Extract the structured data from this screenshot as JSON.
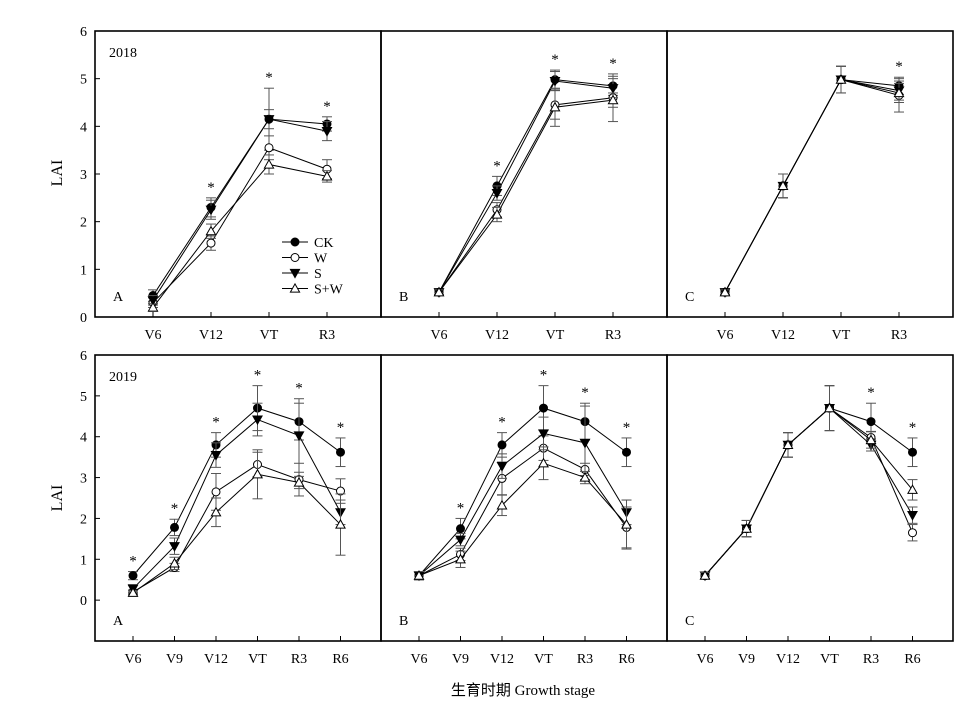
{
  "figure": {
    "xlabel": "生育时期 Growth stage",
    "ylabel": "LAI",
    "legend": [
      "CK",
      "W",
      "S",
      "S+W"
    ],
    "legend_placement": "inside panel A (2018), lower-middle",
    "colors": {
      "line": "#000000",
      "error_bar": "#555555",
      "marker": "#000000"
    },
    "marker_symbols": {
      "CK": "filled-circle",
      "W": "open-circle",
      "S": "filled-triangle-down",
      "S+W": "open-triangle-up"
    }
  },
  "chart_data": [
    {
      "type": "line",
      "row": "2018",
      "panel": "A",
      "year_label": "2018",
      "categories": [
        "V6",
        "V12",
        "VT",
        "R3"
      ],
      "ylim": [
        0,
        6
      ],
      "yticks": [
        0,
        1,
        2,
        3,
        4,
        5,
        6
      ],
      "show_yticklabels": true,
      "series": [
        {
          "name": "CK",
          "values": [
            0.45,
            2.3,
            4.15,
            4.05
          ],
          "err": [
            0.12,
            0.2,
            0.65,
            0.15
          ]
        },
        {
          "name": "W",
          "values": [
            0.3,
            1.55,
            3.55,
            3.1
          ],
          "err": [
            0.1,
            0.15,
            0.25,
            0.2
          ]
        },
        {
          "name": "S",
          "values": [
            0.35,
            2.25,
            4.15,
            3.9
          ],
          "err": [
            0.1,
            0.2,
            0.2,
            0.2
          ]
        },
        {
          "name": "S+W",
          "values": [
            0.2,
            1.8,
            3.2,
            2.95
          ],
          "err": [
            0.08,
            0.15,
            0.2,
            0.12
          ]
        }
      ],
      "significance": [
        "V12",
        "VT",
        "R3"
      ]
    },
    {
      "type": "line",
      "row": "2018",
      "panel": "B",
      "categories": [
        "V6",
        "V12",
        "VT",
        "R3"
      ],
      "ylim": [
        0,
        6
      ],
      "yticks": [
        0,
        1,
        2,
        3,
        4,
        5,
        6
      ],
      "show_yticklabels": false,
      "series": [
        {
          "name": "CK",
          "values": [
            0.52,
            2.75,
            4.98,
            4.85
          ],
          "err": [
            0.05,
            0.2,
            0.2,
            0.2
          ]
        },
        {
          "name": "W",
          "values": [
            0.52,
            2.25,
            4.45,
            4.6
          ],
          "err": [
            0.05,
            0.15,
            0.3,
            0.5
          ]
        },
        {
          "name": "S",
          "values": [
            0.52,
            2.6,
            4.95,
            4.8
          ],
          "err": [
            0.05,
            0.15,
            0.2,
            0.2
          ]
        },
        {
          "name": "S+W",
          "values": [
            0.52,
            2.15,
            4.4,
            4.55
          ],
          "err": [
            0.05,
            0.15,
            0.4,
            0.15
          ]
        }
      ],
      "significance": [
        "V12",
        "VT",
        "R3"
      ]
    },
    {
      "type": "line",
      "row": "2018",
      "panel": "C",
      "categories": [
        "V6",
        "V12",
        "VT",
        "R3"
      ],
      "ylim": [
        0,
        6
      ],
      "yticks": [
        0,
        1,
        2,
        3,
        4,
        5,
        6
      ],
      "show_yticklabels": false,
      "series": [
        {
          "name": "CK",
          "values": [
            0.52,
            2.75,
            4.98,
            4.85
          ],
          "err": [
            0.05,
            0.25,
            0.28,
            0.18
          ]
        },
        {
          "name": "W",
          "values": [
            0.52,
            2.75,
            4.98,
            4.65
          ],
          "err": [
            0.05,
            0.25,
            0.28,
            0.35
          ]
        },
        {
          "name": "S",
          "values": [
            0.52,
            2.75,
            4.98,
            4.75
          ],
          "err": [
            0.05,
            0.25,
            0.28,
            0.2
          ]
        },
        {
          "name": "S+W",
          "values": [
            0.52,
            2.75,
            4.98,
            4.7
          ],
          "err": [
            0.05,
            0.25,
            0.28,
            0.2
          ]
        }
      ],
      "significance": [
        "R3"
      ]
    },
    {
      "type": "line",
      "row": "2019",
      "panel": "A",
      "year_label": "2019",
      "categories": [
        "V6",
        "V9",
        "V12",
        "VT",
        "R3",
        "R6"
      ],
      "ylim": [
        -1,
        6
      ],
      "yticks": [
        0,
        1,
        2,
        3,
        4,
        5,
        6
      ],
      "show_yticklabels": true,
      "series": [
        {
          "name": "CK",
          "values": [
            0.6,
            1.78,
            3.8,
            4.7,
            4.37,
            3.62
          ],
          "err": [
            0.1,
            0.2,
            0.3,
            0.55,
            0.45,
            0.35
          ]
        },
        {
          "name": "W",
          "values": [
            0.2,
            0.8,
            2.65,
            3.32,
            2.95,
            2.67
          ],
          "err": [
            0.05,
            0.1,
            0.45,
            0.3,
            0.4,
            0.3
          ]
        },
        {
          "name": "S",
          "values": [
            0.28,
            1.32,
            3.55,
            4.42,
            4.03,
            2.15
          ],
          "err": [
            0.1,
            0.2,
            0.3,
            0.4,
            0.9,
            0.3
          ]
        },
        {
          "name": "S+W",
          "values": [
            0.18,
            0.9,
            2.15,
            3.08,
            2.88,
            1.85
          ],
          "err": [
            0.05,
            0.15,
            0.35,
            0.6,
            0.15,
            0.75
          ]
        }
      ],
      "significance": [
        "V6",
        "V9",
        "V12",
        "VT",
        "R3",
        "R6"
      ]
    },
    {
      "type": "line",
      "row": "2019",
      "panel": "B",
      "categories": [
        "V6",
        "V9",
        "V12",
        "VT",
        "R3",
        "R6"
      ],
      "ylim": [
        -1,
        6
      ],
      "yticks": [
        0,
        1,
        2,
        3,
        4,
        5,
        6
      ],
      "show_yticklabels": false,
      "series": [
        {
          "name": "CK",
          "values": [
            0.6,
            1.75,
            3.8,
            4.7,
            4.37,
            3.62
          ],
          "err": [
            0.1,
            0.25,
            0.3,
            0.55,
            0.45,
            0.35
          ]
        },
        {
          "name": "W",
          "values": [
            0.6,
            1.12,
            2.98,
            3.72,
            3.2,
            1.78
          ],
          "err": [
            0.1,
            0.15,
            0.4,
            0.3,
            0.15,
            0.5
          ]
        },
        {
          "name": "S",
          "values": [
            0.6,
            1.48,
            3.28,
            4.08,
            3.85,
            2.15
          ],
          "err": [
            0.1,
            0.15,
            0.3,
            0.4,
            0.9,
            0.3
          ]
        },
        {
          "name": "S+W",
          "values": [
            0.6,
            1.0,
            2.32,
            3.35,
            3.0,
            1.85
          ],
          "err": [
            0.1,
            0.2,
            0.25,
            0.4,
            0.15,
            0.6
          ]
        }
      ],
      "significance": [
        "V9",
        "V12",
        "VT",
        "R3",
        "R6"
      ]
    },
    {
      "type": "line",
      "row": "2019",
      "panel": "C",
      "categories": [
        "V6",
        "V9",
        "V12",
        "VT",
        "R3",
        "R6"
      ],
      "ylim": [
        -1,
        6
      ],
      "yticks": [
        0,
        1,
        2,
        3,
        4,
        5,
        6
      ],
      "show_yticklabels": false,
      "series": [
        {
          "name": "CK",
          "values": [
            0.6,
            1.75,
            3.8,
            4.7,
            4.37,
            3.62
          ],
          "err": [
            0.08,
            0.2,
            0.3,
            0.55,
            0.45,
            0.35
          ]
        },
        {
          "name": "W",
          "values": [
            0.6,
            1.75,
            3.8,
            4.7,
            3.98,
            1.65
          ],
          "err": [
            0.08,
            0.2,
            0.3,
            0.55,
            0.15,
            0.2
          ]
        },
        {
          "name": "S",
          "values": [
            0.6,
            1.75,
            3.8,
            4.7,
            3.8,
            2.08
          ],
          "err": [
            0.08,
            0.2,
            0.3,
            0.55,
            0.15,
            0.2
          ]
        },
        {
          "name": "S+W",
          "values": [
            0.6,
            1.75,
            3.8,
            4.7,
            3.92,
            2.7
          ],
          "err": [
            0.08,
            0.2,
            0.3,
            0.55,
            0.2,
            0.25
          ]
        }
      ],
      "significance": [
        "R3",
        "R6"
      ]
    }
  ]
}
